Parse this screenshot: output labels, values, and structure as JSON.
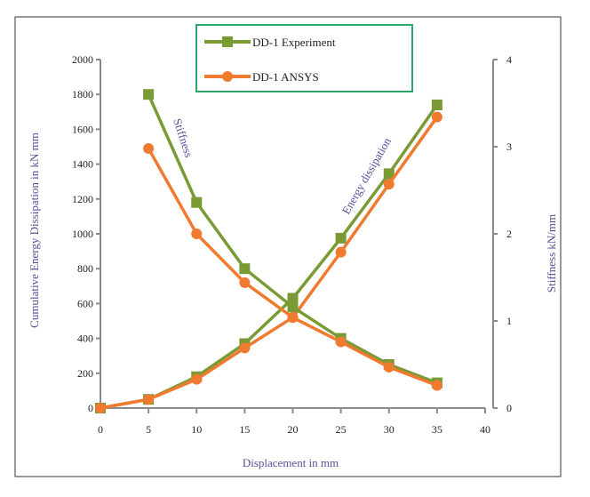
{
  "chart_data": {
    "type": "line",
    "xlabel": "Displacement in mm",
    "ylabel": "Cumulative Energy Dissipation in kN mm",
    "y2label": "Stiffness kN/mm",
    "xlim": [
      0,
      40
    ],
    "ylim": [
      0,
      2000
    ],
    "y2lim": [
      0,
      4
    ],
    "xticks": [
      0,
      5,
      10,
      15,
      20,
      25,
      30,
      35,
      40
    ],
    "yticks": [
      0,
      200,
      400,
      600,
      800,
      1000,
      1200,
      1400,
      1600,
      1800,
      2000
    ],
    "y2ticks": [
      0,
      1,
      2,
      3,
      4
    ],
    "grid": false,
    "legend_position": "top-center",
    "annotations": [
      "Stiffness",
      "Energy dissipation"
    ],
    "colors": {
      "experiment": "#7a9a35",
      "ansys": "#f07a30",
      "axis": "#8a8a8a",
      "label": "#5a4f9a",
      "legend_border": "#2aa86a"
    },
    "series": [
      {
        "name": "DD-1 Experiment",
        "group": "energy",
        "axis": "left",
        "marker": "square",
        "x": [
          0,
          5,
          10,
          15,
          20,
          25,
          30,
          35
        ],
        "y": [
          0,
          50,
          180,
          370,
          630,
          975,
          1345,
          1740
        ]
      },
      {
        "name": "DD-1 ANSYS",
        "group": "energy",
        "axis": "left",
        "marker": "circle",
        "x": [
          0,
          5,
          10,
          15,
          20,
          25,
          30,
          35
        ],
        "y": [
          0,
          50,
          165,
          345,
          520,
          895,
          1285,
          1670
        ]
      },
      {
        "name": "DD-1 Experiment",
        "group": "stiffness",
        "axis": "right",
        "marker": "square",
        "x": [
          5,
          10,
          15,
          20,
          25,
          30,
          35
        ],
        "y": [
          3.6,
          2.36,
          1.6,
          1.16,
          0.8,
          0.5,
          0.29
        ]
      },
      {
        "name": "DD-1 ANSYS",
        "group": "stiffness",
        "axis": "right",
        "marker": "circle",
        "x": [
          5,
          10,
          15,
          20,
          25,
          30,
          35
        ],
        "y": [
          2.98,
          2.0,
          1.44,
          1.04,
          0.76,
          0.47,
          0.26
        ]
      }
    ]
  }
}
